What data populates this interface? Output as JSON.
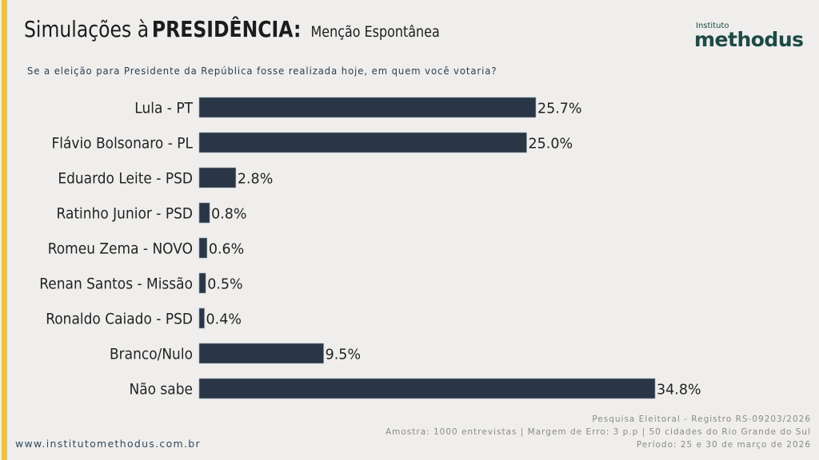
{
  "header": {
    "title_light": "Simulações à",
    "title_bold": "PRESIDÊNCIA:",
    "subtitle": "Menção Espontânea",
    "question": "Se a eleição para Presidente da República fosse realizada hoje, em quem você votaria?"
  },
  "logo": {
    "small": "Instituto",
    "big": "methodus",
    "color": "#1d4a45"
  },
  "colors": {
    "accent_stripe": "#f0c13e",
    "bar": "#2a3645",
    "background": "#efeeec"
  },
  "chart_data": {
    "type": "bar",
    "orientation": "horizontal",
    "title": "Simulações à PRESIDÊNCIA: Menção Espontânea",
    "xlabel": "",
    "ylabel": "",
    "categories": [
      "Lula - PT",
      "Flávio Bolsonaro - PL",
      "Eduardo Leite - PSD",
      "Ratinho Junior - PSD",
      "Romeu Zema - NOVO",
      "Renan Santos - Missão",
      "Ronaldo Caiado - PSD",
      "Branco/Nulo",
      "Não sabe"
    ],
    "values": [
      25.7,
      25.0,
      2.8,
      0.8,
      0.6,
      0.5,
      0.4,
      9.5,
      34.8
    ],
    "value_labels": [
      "25.7%",
      "25.0%",
      "2.8%",
      "0.8%",
      "0.6%",
      "0.5%",
      "0.4%",
      "9.5%",
      "34.8%"
    ],
    "unit": "%",
    "xlim": [
      0,
      40
    ],
    "grid": false,
    "legend": "none"
  },
  "footer": {
    "registry": "Pesquisa Eleitoral - Registro RS-09203/2026",
    "sample": "Amostra: 1000 entrevistas | Margem de Erro: 3 p.p | 50 cidades do Rio Grande do Sul",
    "period": "Período: 25 e 30 de março de 2026",
    "website": "www.institutomethodus.com.br"
  }
}
